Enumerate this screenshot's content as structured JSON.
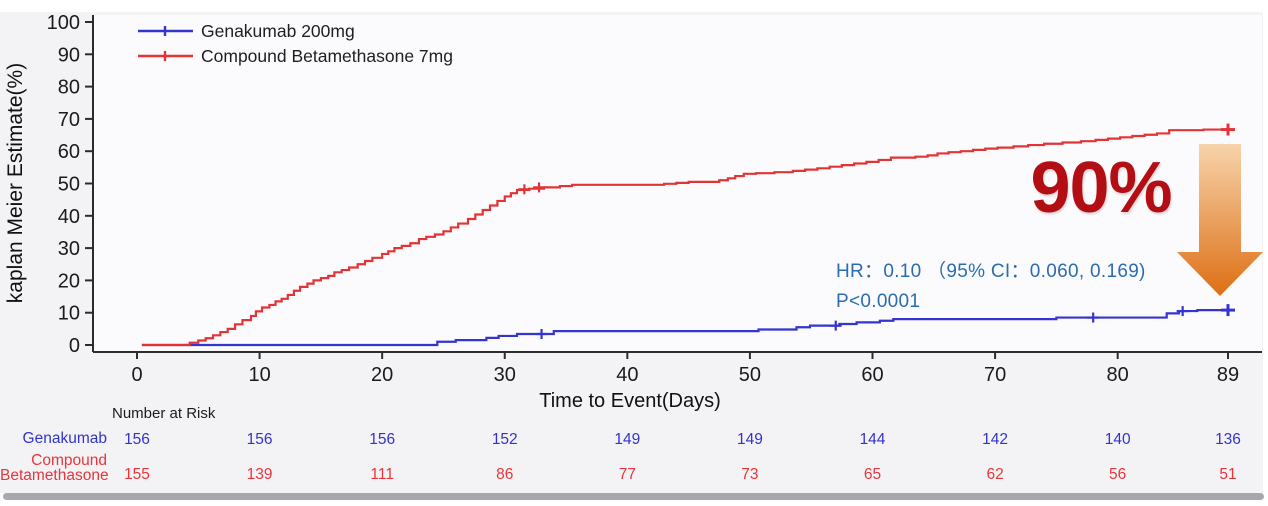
{
  "figure": {
    "background_color": "#f3f3f6",
    "legend": {
      "items": [
        {
          "label": "Genakumab 200mg",
          "color": "#3434cf"
        },
        {
          "label": "Compound Betamethasone 7mg",
          "color": "#e23436"
        }
      ]
    },
    "stats": {
      "hr_text": "HR：0.10 （95% CI：0.060, 0.169)",
      "p_text": "P<0.0001",
      "color": "#2b6cb0"
    },
    "highlight": {
      "text": "90%",
      "color": "#b30e14",
      "arrow_top_color": "#f7d3ac",
      "arrow_bottom_color": "#dd6f14"
    }
  },
  "chart_data": {
    "type": "line",
    "variant": "kaplan-meier-step",
    "title": "",
    "xlabel": "Time to Event(Days)",
    "ylabel": "kaplan Meier Estimate(%)",
    "xlim": [
      0,
      89
    ],
    "ylim": [
      0,
      100
    ],
    "xticks": [
      0,
      10,
      20,
      30,
      40,
      50,
      60,
      70,
      80,
      89
    ],
    "yticks": [
      0,
      10,
      20,
      30,
      40,
      50,
      60,
      70,
      80,
      90,
      100
    ],
    "grid": false,
    "legend_position": "top-left",
    "axis_color": "#2c2c30",
    "tick_label_color": "#1b1b1f",
    "series": [
      {
        "name": "Genakumab 200mg",
        "color": "#3434cf",
        "steps": [
          [
            0.4,
            0
          ],
          [
            24.5,
            1
          ],
          [
            26,
            1.5
          ],
          [
            28.5,
            2.2
          ],
          [
            29.5,
            2.8
          ],
          [
            31,
            3.4
          ],
          [
            34,
            4.3
          ],
          [
            50.7,
            4.8
          ],
          [
            53.8,
            5.5
          ],
          [
            54.9,
            6
          ],
          [
            57.3,
            6.5
          ],
          [
            58.7,
            7
          ],
          [
            60.6,
            7.5
          ],
          [
            61.7,
            8
          ],
          [
            75,
            8.5
          ],
          [
            84,
            9.8
          ],
          [
            85,
            10.5
          ],
          [
            86.5,
            10.8
          ],
          [
            89,
            10.8
          ]
        ],
        "censor_marks": [
          [
            33,
            3.4
          ],
          [
            57,
            6
          ],
          [
            78,
            8.5
          ],
          [
            85.3,
            10.5
          ],
          [
            89,
            10.8
          ]
        ],
        "final_estimate_pct": 10.8
      },
      {
        "name": "Compound Betamethasone 7mg",
        "color": "#e23436",
        "steps": [
          [
            0.4,
            0
          ],
          [
            4.3,
            0.7
          ],
          [
            5,
            1.4
          ],
          [
            5.6,
            2.1
          ],
          [
            6.2,
            3
          ],
          [
            6.8,
            4
          ],
          [
            7.4,
            5
          ],
          [
            8,
            6.4
          ],
          [
            8.6,
            7.7
          ],
          [
            9.3,
            9
          ],
          [
            9.7,
            10.4
          ],
          [
            10.2,
            11.6
          ],
          [
            10.8,
            12.4
          ],
          [
            11.3,
            13.5
          ],
          [
            11.8,
            14.3
          ],
          [
            12.3,
            15.5
          ],
          [
            12.8,
            16.8
          ],
          [
            13.3,
            18
          ],
          [
            13.9,
            19
          ],
          [
            14.4,
            20
          ],
          [
            15,
            20.7
          ],
          [
            15.6,
            21.4
          ],
          [
            16.1,
            22.5
          ],
          [
            16.7,
            23.2
          ],
          [
            17.3,
            24
          ],
          [
            18,
            25
          ],
          [
            18.6,
            26
          ],
          [
            19.2,
            27
          ],
          [
            20,
            28.2
          ],
          [
            20.5,
            29
          ],
          [
            21,
            30
          ],
          [
            21.6,
            30.7
          ],
          [
            22.3,
            31.5
          ],
          [
            23,
            32.8
          ],
          [
            23.6,
            33.5
          ],
          [
            24.3,
            34.2
          ],
          [
            25,
            35.2
          ],
          [
            25.6,
            36.4
          ],
          [
            26.2,
            37.6
          ],
          [
            27,
            39
          ],
          [
            27.6,
            40.4
          ],
          [
            28.2,
            41.8
          ],
          [
            28.8,
            43.2
          ],
          [
            29.4,
            44.6
          ],
          [
            30,
            46
          ],
          [
            30.5,
            47
          ],
          [
            31,
            48
          ],
          [
            32,
            48.4
          ],
          [
            33.2,
            48.8
          ],
          [
            34.5,
            49.2
          ],
          [
            35.5,
            49.6
          ],
          [
            43,
            49.9
          ],
          [
            44,
            50.2
          ],
          [
            45,
            50.5
          ],
          [
            47.5,
            51
          ],
          [
            48.2,
            51.6
          ],
          [
            48.8,
            52.3
          ],
          [
            49.5,
            53
          ],
          [
            50.5,
            53.2
          ],
          [
            52,
            53.5
          ],
          [
            53.5,
            53.9
          ],
          [
            54.5,
            54.3
          ],
          [
            55.5,
            54.7
          ],
          [
            56.5,
            55.2
          ],
          [
            57.5,
            55.7
          ],
          [
            58.5,
            56.2
          ],
          [
            59.5,
            56.7
          ],
          [
            60.5,
            57.3
          ],
          [
            61.5,
            58
          ],
          [
            63.5,
            58.3
          ],
          [
            64.5,
            58.7
          ],
          [
            65.3,
            59.3
          ],
          [
            66.2,
            59.7
          ],
          [
            67.2,
            60
          ],
          [
            68.2,
            60.4
          ],
          [
            69.2,
            60.8
          ],
          [
            70.2,
            61.1
          ],
          [
            71.5,
            61.5
          ],
          [
            72.7,
            61.9
          ],
          [
            74,
            62.3
          ],
          [
            75.5,
            62.7
          ],
          [
            77,
            63.1
          ],
          [
            78.2,
            63.5
          ],
          [
            79.2,
            63.9
          ],
          [
            80.2,
            64.3
          ],
          [
            81.2,
            64.7
          ],
          [
            82.2,
            65.1
          ],
          [
            83.2,
            65.5
          ],
          [
            84.2,
            66.5
          ],
          [
            87,
            66.7
          ],
          [
            89,
            66.7
          ]
        ],
        "censor_marks": [
          [
            31.6,
            48.2
          ],
          [
            32.8,
            48.8
          ],
          [
            89,
            66.7
          ]
        ],
        "final_estimate_pct": 66.7
      }
    ],
    "annotations": {
      "hazard_ratio": "HR：0.10 （95% CI：0.060, 0.169)",
      "p_value": "P<0.0001",
      "relative_reduction": "90%"
    },
    "number_at_risk": {
      "title": "Number at Risk",
      "time_points": [
        0,
        10,
        20,
        30,
        40,
        50,
        60,
        70,
        80,
        89
      ],
      "rows": [
        {
          "label": "Genakumab",
          "label_lines": [
            "Genakumab"
          ],
          "color": "#3333cc",
          "counts": [
            156,
            156,
            156,
            152,
            149,
            149,
            144,
            142,
            140,
            136
          ]
        },
        {
          "label": "Compound Betamethasone",
          "label_lines": [
            "Compound",
            "Betamethasone"
          ],
          "color": "#e8363a",
          "counts": [
            155,
            139,
            111,
            86,
            77,
            73,
            65,
            62,
            56,
            51
          ]
        }
      ]
    }
  }
}
